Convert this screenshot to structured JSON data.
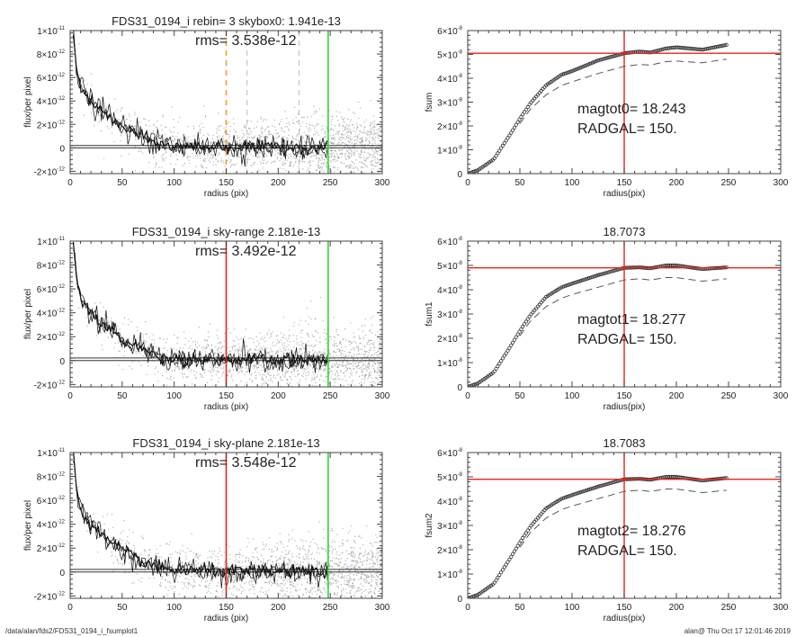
{
  "footer": {
    "left": "/data/alan/fds2/FDS31_0194_i_fsumplot1",
    "right": "alan@  Thu Oct 17 12:01:46 2019"
  },
  "colors": {
    "scatter": "#9a9a9a",
    "profile": "#111111",
    "marker_red": "#e8231c",
    "marker_green": "#2fd62f",
    "marker_orange": "#f0a030",
    "marker_grey": "#bbbbbb"
  },
  "chart_data": [
    {
      "type": "scatter",
      "title": "FDS31_0194_i rebin= 3    skybox0:  1.941e-13",
      "annotation": "rms= 3.538e-12",
      "xlabel": "radius (pix)",
      "ylabel": "flux/per pixel",
      "xlim": [
        0,
        300
      ],
      "ylim": [
        -2.2e-12,
        1e-11
      ],
      "xticks": [
        "0",
        "50",
        "100",
        "150",
        "200",
        "250",
        "300"
      ],
      "yticks": [
        {
          "v": 1e-11,
          "m": "1×10",
          "e": "-11"
        },
        {
          "v": 8e-12,
          "m": "8×10",
          "e": "-12"
        },
        {
          "v": 6e-12,
          "m": "6×10",
          "e": "-12"
        },
        {
          "v": 4e-12,
          "m": "4×10",
          "e": "-12"
        },
        {
          "v": 2e-12,
          "m": "2×10",
          "e": "-12"
        },
        {
          "v": 0,
          "m": "0",
          "e": ""
        },
        {
          "v": -2e-12,
          "m": "-2×10",
          "e": "-12"
        }
      ],
      "profile": {
        "r": [
          3,
          5,
          8,
          10,
          15,
          20,
          25,
          30,
          40,
          50,
          60,
          70,
          80,
          90,
          100,
          120,
          150,
          180,
          210,
          248
        ],
        "flux": [
          1e-11,
          8e-12,
          5.8e-12,
          5.2e-12,
          4.5e-12,
          4e-12,
          3.5e-12,
          3.1e-12,
          2.4e-12,
          1.8e-12,
          1.3e-12,
          9e-13,
          5e-13,
          2.5e-13,
          1e-13,
          1.5e-13,
          5e-14,
          5e-14,
          0,
          5e-14
        ]
      },
      "hlines": [
        0,
        1.941e-13
      ],
      "vlines": [
        {
          "x": 150,
          "color": "orange",
          "style": "dashed"
        },
        {
          "x": 170,
          "color": "grey",
          "style": "dashed"
        },
        {
          "x": 220,
          "color": "grey",
          "style": "dashed"
        },
        {
          "x": 248,
          "color": "green",
          "style": "solid"
        }
      ]
    },
    {
      "type": "line",
      "title": "",
      "annotation": [
        "magtot0=  18.243",
        "RADGAL=    150."
      ],
      "xlabel": "radius(pix)",
      "ylabel": "fsum",
      "xlim": [
        0,
        300
      ],
      "ylim": [
        0,
        6e-08
      ],
      "xticks": [
        "0",
        "50",
        "100",
        "150",
        "200",
        "250",
        "300"
      ],
      "yticks": [
        {
          "v": 6e-08,
          "m": "6×10",
          "e": "-8"
        },
        {
          "v": 5e-08,
          "m": "5×10",
          "e": "-8"
        },
        {
          "v": 4e-08,
          "m": "4×10",
          "e": "-8"
        },
        {
          "v": 3e-08,
          "m": "3×10",
          "e": "-8"
        },
        {
          "v": 2e-08,
          "m": "2×10",
          "e": "-8"
        },
        {
          "v": 1e-08,
          "m": "1×10",
          "e": "-8"
        },
        {
          "v": 0,
          "m": "0",
          "e": ""
        }
      ],
      "series": [
        {
          "r": [
            0,
            10,
            25,
            40,
            50,
            60,
            75,
            90,
            100,
            125,
            150,
            165,
            175,
            190,
            200,
            225,
            248
          ],
          "values": [
            0,
            1.5e-09,
            6e-09,
            1.6e-08,
            2.3e-08,
            2.95e-08,
            3.7e-08,
            4.15e-08,
            4.3e-08,
            4.75e-08,
            5.05e-08,
            5.12e-08,
            5.08e-08,
            5.25e-08,
            5.3e-08,
            5.2e-08,
            5.4e-08
          ],
          "style": "circles"
        },
        {
          "r": [
            50,
            60,
            75,
            90,
            100,
            125,
            150,
            165,
            175,
            190,
            200,
            225,
            248
          ],
          "values": [
            2.1e-08,
            2.7e-08,
            3.3e-08,
            3.7e-08,
            3.85e-08,
            4.2e-08,
            4.5e-08,
            4.58e-08,
            4.55e-08,
            4.7e-08,
            4.72e-08,
            4.65e-08,
            4.8e-08
          ],
          "style": "dashed"
        }
      ],
      "hline": 5.05e-08,
      "vline": 150
    },
    {
      "type": "scatter",
      "title": "FDS31_0194_i sky-range  2.181e-13",
      "annotation": "rms= 3.492e-12",
      "xlabel": "radius (pix)",
      "ylabel": "flux/per pixel",
      "xlim": [
        0,
        300
      ],
      "ylim": [
        -2.2e-12,
        1e-11
      ],
      "xticks": [
        "0",
        "50",
        "100",
        "150",
        "200",
        "250",
        "300"
      ],
      "yticks": [
        {
          "v": 1e-11,
          "m": "1×10",
          "e": "-11"
        },
        {
          "v": 8e-12,
          "m": "8×10",
          "e": "-12"
        },
        {
          "v": 6e-12,
          "m": "6×10",
          "e": "-12"
        },
        {
          "v": 4e-12,
          "m": "4×10",
          "e": "-12"
        },
        {
          "v": 2e-12,
          "m": "2×10",
          "e": "-12"
        },
        {
          "v": 0,
          "m": "0",
          "e": ""
        },
        {
          "v": -2e-12,
          "m": "-2×10",
          "e": "-12"
        }
      ],
      "profile": {
        "r": [
          3,
          5,
          8,
          10,
          15,
          20,
          25,
          30,
          40,
          50,
          60,
          70,
          80,
          90,
          100,
          120,
          150,
          180,
          210,
          248
        ],
        "flux": [
          1e-11,
          8e-12,
          5.8e-12,
          5.2e-12,
          4.5e-12,
          4e-12,
          3.5e-12,
          3.1e-12,
          2.4e-12,
          1.8e-12,
          1.3e-12,
          9e-13,
          5e-13,
          2.5e-13,
          1e-13,
          1.5e-13,
          5e-14,
          5e-14,
          0,
          5e-14
        ]
      },
      "hlines": [
        0,
        2.181e-13
      ],
      "vlines": [
        {
          "x": 150,
          "color": "red",
          "style": "solid"
        },
        {
          "x": 248,
          "color": "green",
          "style": "solid"
        }
      ]
    },
    {
      "type": "line",
      "title": "18.7073",
      "annotation": [
        "magtot1=  18.277",
        "RADGAL=    150."
      ],
      "xlabel": "radius(pix)",
      "ylabel": "fsum1",
      "xlim": [
        0,
        300
      ],
      "ylim": [
        0,
        6e-08
      ],
      "xticks": [
        "0",
        "50",
        "100",
        "150",
        "200",
        "250",
        "300"
      ],
      "yticks": [
        {
          "v": 6e-08,
          "m": "6×10",
          "e": "-8"
        },
        {
          "v": 5e-08,
          "m": "5×10",
          "e": "-8"
        },
        {
          "v": 4e-08,
          "m": "4×10",
          "e": "-8"
        },
        {
          "v": 3e-08,
          "m": "3×10",
          "e": "-8"
        },
        {
          "v": 2e-08,
          "m": "2×10",
          "e": "-8"
        },
        {
          "v": 1e-08,
          "m": "1×10",
          "e": "-8"
        },
        {
          "v": 0,
          "m": "0",
          "e": ""
        }
      ],
      "series": [
        {
          "r": [
            0,
            10,
            25,
            40,
            50,
            60,
            75,
            90,
            100,
            125,
            150,
            165,
            175,
            190,
            200,
            225,
            248
          ],
          "values": [
            0,
            1.5e-09,
            6e-09,
            1.6e-08,
            2.3e-08,
            2.95e-08,
            3.7e-08,
            4.1e-08,
            4.25e-08,
            4.6e-08,
            4.9e-08,
            4.92e-08,
            4.88e-08,
            5e-08,
            5e-08,
            4.85e-08,
            4.92e-08
          ],
          "style": "circles"
        },
        {
          "r": [
            50,
            60,
            75,
            90,
            100,
            125,
            150,
            165,
            175,
            190,
            200,
            225,
            248
          ],
          "values": [
            2.1e-08,
            2.7e-08,
            3.3e-08,
            3.65e-08,
            3.8e-08,
            4.1e-08,
            4.4e-08,
            4.45e-08,
            4.4e-08,
            4.5e-08,
            4.5e-08,
            4.35e-08,
            4.45e-08
          ],
          "style": "dashed"
        }
      ],
      "hline": 4.9e-08,
      "vline": 150
    },
    {
      "type": "scatter",
      "title": "FDS31_0194_i sky-plane  2.181e-13",
      "annotation": "rms= 3.548e-12",
      "xlabel": "radius (pix)",
      "ylabel": "flux/per pixel",
      "xlim": [
        0,
        300
      ],
      "ylim": [
        -2.2e-12,
        1e-11
      ],
      "xticks": [
        "0",
        "50",
        "100",
        "150",
        "200",
        "250",
        "300"
      ],
      "yticks": [
        {
          "v": 1e-11,
          "m": "1×10",
          "e": "-11"
        },
        {
          "v": 8e-12,
          "m": "8×10",
          "e": "-12"
        },
        {
          "v": 6e-12,
          "m": "6×10",
          "e": "-12"
        },
        {
          "v": 4e-12,
          "m": "4×10",
          "e": "-12"
        },
        {
          "v": 2e-12,
          "m": "2×10",
          "e": "-12"
        },
        {
          "v": 0,
          "m": "0",
          "e": ""
        },
        {
          "v": -2e-12,
          "m": "-2×10",
          "e": "-12"
        }
      ],
      "profile": {
        "r": [
          3,
          5,
          8,
          10,
          15,
          20,
          25,
          30,
          40,
          50,
          60,
          70,
          80,
          90,
          100,
          120,
          150,
          180,
          210,
          248
        ],
        "flux": [
          1e-11,
          8e-12,
          5.8e-12,
          5.2e-12,
          4.5e-12,
          4e-12,
          3.5e-12,
          3.1e-12,
          2.4e-12,
          1.8e-12,
          1.3e-12,
          9e-13,
          5e-13,
          2.5e-13,
          1e-13,
          1.5e-13,
          5e-14,
          5e-14,
          0,
          5e-14
        ]
      },
      "hlines": [
        0,
        2.181e-13
      ],
      "vlines": [
        {
          "x": 150,
          "color": "red",
          "style": "solid"
        },
        {
          "x": 248,
          "color": "green",
          "style": "solid"
        }
      ]
    },
    {
      "type": "line",
      "title": "18.7083",
      "annotation": [
        "magtot2=  18.276",
        "RADGAL=    150."
      ],
      "xlabel": "radius(pix)",
      "ylabel": "fsum2",
      "xlim": [
        0,
        300
      ],
      "ylim": [
        0,
        6e-08
      ],
      "xticks": [
        "0",
        "50",
        "100",
        "150",
        "200",
        "250",
        "300"
      ],
      "yticks": [
        {
          "v": 6e-08,
          "m": "6×10",
          "e": "-8"
        },
        {
          "v": 5e-08,
          "m": "5×10",
          "e": "-8"
        },
        {
          "v": 4e-08,
          "m": "4×10",
          "e": "-8"
        },
        {
          "v": 3e-08,
          "m": "3×10",
          "e": "-8"
        },
        {
          "v": 2e-08,
          "m": "2×10",
          "e": "-8"
        },
        {
          "v": 1e-08,
          "m": "1×10",
          "e": "-8"
        },
        {
          "v": 0,
          "m": "0",
          "e": ""
        }
      ],
      "series": [
        {
          "r": [
            0,
            10,
            25,
            40,
            50,
            60,
            75,
            90,
            100,
            125,
            150,
            165,
            175,
            190,
            200,
            225,
            248
          ],
          "values": [
            0,
            1.5e-09,
            6e-09,
            1.6e-08,
            2.3e-08,
            2.95e-08,
            3.7e-08,
            4.1e-08,
            4.25e-08,
            4.6e-08,
            4.9e-08,
            4.92e-08,
            4.88e-08,
            5e-08,
            5e-08,
            4.85e-08,
            4.95e-08
          ],
          "style": "circles"
        },
        {
          "r": [
            50,
            60,
            75,
            90,
            100,
            125,
            150,
            165,
            175,
            190,
            200,
            225,
            248
          ],
          "values": [
            2.1e-08,
            2.7e-08,
            3.3e-08,
            3.65e-08,
            3.8e-08,
            4.1e-08,
            4.4e-08,
            4.45e-08,
            4.4e-08,
            4.5e-08,
            4.5e-08,
            4.35e-08,
            4.45e-08
          ],
          "style": "dashed"
        }
      ],
      "hline": 4.9e-08,
      "vline": 150
    }
  ]
}
